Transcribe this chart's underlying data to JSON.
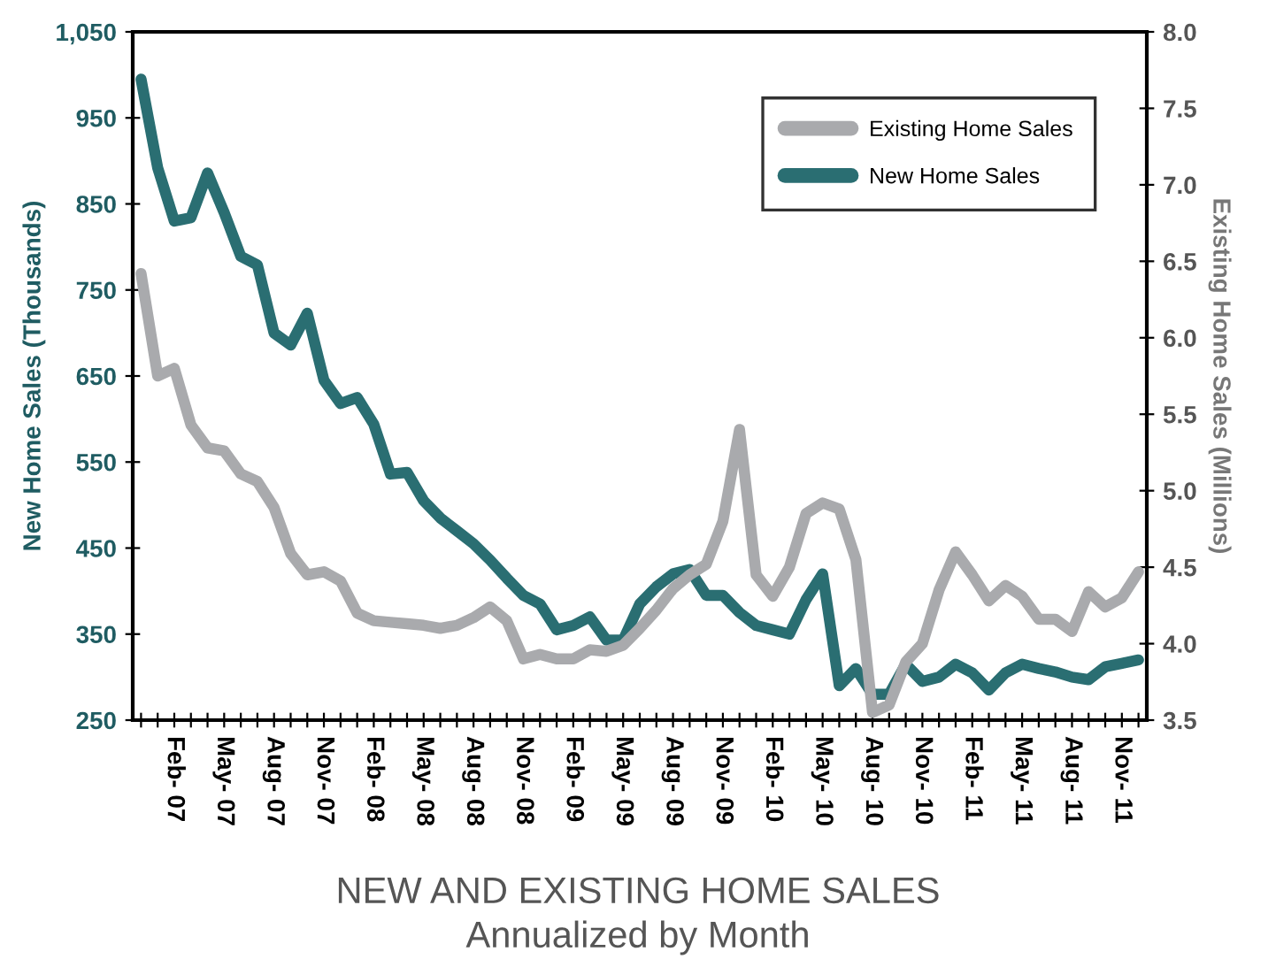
{
  "chart_data": {
    "type": "line",
    "title": "NEW AND EXISTING HOME SALES",
    "subtitle": "Annualized by Month",
    "ylabel": "New Home Sales (Thousands)",
    "y2label": "Existing Home Sales (Millions)",
    "categories": [
      null,
      null,
      "Feb- 07",
      null,
      null,
      "May- 07",
      null,
      null,
      "Aug- 07",
      null,
      null,
      "Nov- 07",
      null,
      null,
      "Feb- 08",
      null,
      null,
      "May- 08",
      null,
      null,
      "Aug- 08",
      null,
      null,
      "Nov- 08",
      null,
      null,
      "Feb- 09",
      null,
      null,
      "May- 09",
      null,
      null,
      "Aug- 09",
      null,
      null,
      "Nov- 09",
      null,
      null,
      "Feb- 10",
      null,
      null,
      "May- 10",
      null,
      null,
      "Aug- 10",
      null,
      null,
      "Nov- 10",
      null,
      null,
      "Feb- 11",
      null,
      null,
      "May- 11",
      null,
      null,
      "Aug- 11",
      null,
      null,
      "Nov- 11",
      null
    ],
    "series": [
      {
        "name": "Existing Home Sales",
        "color": "#a9aaad",
        "axis": "y2",
        "values": [
          6.42,
          5.75,
          5.8,
          5.43,
          5.28,
          5.26,
          5.11,
          5.06,
          4.89,
          4.59,
          4.45,
          4.47,
          4.41,
          4.2,
          4.15,
          4.14,
          4.13,
          4.12,
          4.1,
          4.12,
          4.17,
          4.24,
          4.15,
          3.9,
          3.93,
          3.9,
          3.9,
          3.96,
          3.95,
          3.99,
          4.1,
          4.22,
          4.36,
          4.45,
          4.52,
          4.8,
          5.4,
          4.45,
          4.31,
          4.5,
          4.85,
          4.92,
          4.88,
          4.55,
          3.55,
          3.6,
          3.88,
          4.0,
          4.35,
          4.6,
          4.45,
          4.28,
          4.38,
          4.31,
          4.16,
          4.16,
          4.08,
          4.34,
          4.24,
          4.3,
          4.47
        ]
      },
      {
        "name": "New Home Sales",
        "color": "#2a6e72",
        "values": [
          995,
          892,
          830,
          834,
          886,
          840,
          789,
          779,
          700,
          686,
          723,
          645,
          618,
          625,
          594,
          536,
          538,
          505,
          485,
          470,
          455,
          436,
          415,
          395,
          385,
          355,
          360,
          370,
          343,
          343,
          385,
          405,
          420,
          425,
          395,
          395,
          375,
          360,
          355,
          350,
          390,
          420,
          290,
          310,
          280,
          280,
          315,
          295,
          300,
          315,
          305,
          285,
          305,
          315,
          310,
          306,
          300,
          297,
          312,
          316,
          320
        ]
      }
    ],
    "ylim": [
      250,
      1050
    ],
    "yticks": [
      {
        "value": 250,
        "label": "250"
      },
      {
        "value": 350,
        "label": "350"
      },
      {
        "value": 450,
        "label": "450"
      },
      {
        "value": 550,
        "label": "550"
      },
      {
        "value": 650,
        "label": "650"
      },
      {
        "value": 750,
        "label": "750"
      },
      {
        "value": 850,
        "label": "850"
      },
      {
        "value": 950,
        "label": "950"
      },
      {
        "value": 1050,
        "label": "1,050"
      }
    ],
    "y2lim": [
      3.5,
      8.0
    ],
    "y2ticks": [
      {
        "value": 3.5,
        "label": "3.5"
      },
      {
        "value": 4.0,
        "label": "4.0"
      },
      {
        "value": 4.5,
        "label": "4.5"
      },
      {
        "value": 5.0,
        "label": "5.0"
      },
      {
        "value": 5.5,
        "label": "5.5"
      },
      {
        "value": 6.0,
        "label": "6.0"
      },
      {
        "value": 6.5,
        "label": "6.5"
      },
      {
        "value": 7.0,
        "label": "7.0"
      },
      {
        "value": 7.5,
        "label": "7.5"
      },
      {
        "value": 8.0,
        "label": "8.0"
      }
    ],
    "grid": false,
    "legend": "top right",
    "marker": "none",
    "line_style": "solid"
  }
}
